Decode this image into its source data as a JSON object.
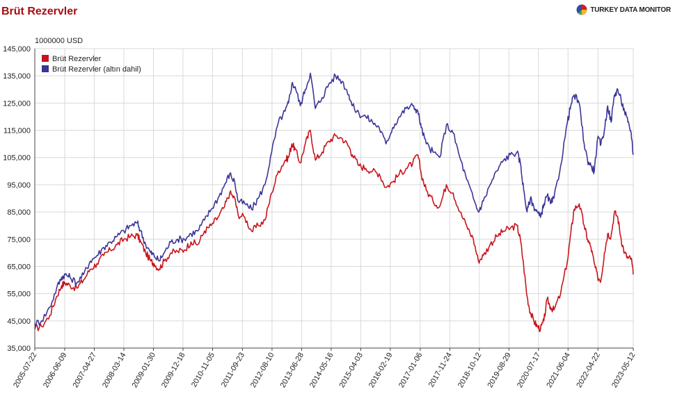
{
  "page": {
    "title": "Brüt Rezervler",
    "brand": "TURKEY DATA MONITOR"
  },
  "colors": {
    "title": "#a50d12",
    "series_red": "#c8141c",
    "series_blue": "#3a3596",
    "grid": "#d9d9d9"
  },
  "chart_data": {
    "type": "line",
    "title": "Brüt Rezervler",
    "unit_label": "1000000 USD",
    "xlabel": "",
    "ylabel": "1000000 USD",
    "ylim": [
      35000,
      145000
    ],
    "yticks": [
      35000,
      45000,
      55000,
      65000,
      75000,
      85000,
      95000,
      105000,
      115000,
      125000,
      135000,
      145000
    ],
    "ytick_labels": [
      "35,000",
      "45,000",
      "55,000",
      "65,000",
      "75,000",
      "85,000",
      "95,000",
      "105,000",
      "115,000",
      "125,000",
      "135,000",
      "145,000"
    ],
    "xlim": [
      2005.55,
      2023.36
    ],
    "xticks": [
      2005.55,
      2006.44,
      2007.32,
      2008.2,
      2009.08,
      2009.96,
      2010.84,
      2011.73,
      2012.61,
      2013.49,
      2014.37,
      2015.25,
      2016.13,
      2017.02,
      2017.9,
      2018.78,
      2019.66,
      2020.54,
      2021.42,
      2022.31,
      2023.36
    ],
    "xtick_labels": [
      "2005-07-22",
      "2006-06-09",
      "2007-04-27",
      "2008-03-14",
      "2009-01-30",
      "2009-12-18",
      "2010-11-05",
      "2011-09-23",
      "2012-08-10",
      "2013-06-28",
      "2014-05-16",
      "2015-04-03",
      "2016-02-19",
      "2017-01-06",
      "2017-11-24",
      "2018-10-12",
      "2019-08-29",
      "2020-07-17",
      "2021-06-04",
      "2022-04-22",
      "2023-05-12"
    ],
    "grid": true,
    "legend_position": "top-left",
    "series": [
      {
        "name": "Brüt Rezervler",
        "color": "#c8141c",
        "x": [
          2005.55,
          2005.75,
          2006.0,
          2006.2,
          2006.35,
          2006.45,
          2006.6,
          2006.8,
          2007.0,
          2007.2,
          2007.4,
          2007.6,
          2007.8,
          2008.0,
          2008.2,
          2008.4,
          2008.6,
          2008.7,
          2008.85,
          2009.0,
          2009.1,
          2009.25,
          2009.4,
          2009.6,
          2009.8,
          2010.0,
          2010.2,
          2010.4,
          2010.6,
          2010.8,
          2011.0,
          2011.2,
          2011.35,
          2011.5,
          2011.6,
          2011.8,
          2012.0,
          2012.2,
          2012.4,
          2012.6,
          2012.8,
          2013.0,
          2013.1,
          2013.2,
          2013.3,
          2013.45,
          2013.6,
          2013.75,
          2013.9,
          2014.1,
          2014.3,
          2014.5,
          2014.7,
          2014.9,
          2015.0,
          2015.2,
          2015.4,
          2015.6,
          2015.8,
          2016.0,
          2016.2,
          2016.4,
          2016.6,
          2016.8,
          2016.95,
          2017.05,
          2017.2,
          2017.4,
          2017.6,
          2017.8,
          2018.0,
          2018.2,
          2018.4,
          2018.6,
          2018.75,
          2018.9,
          2019.1,
          2019.3,
          2019.5,
          2019.7,
          2019.9,
          2020.0,
          2020.1,
          2020.2,
          2020.3,
          2020.4,
          2020.5,
          2020.6,
          2020.7,
          2020.8,
          2020.9,
          2021.0,
          2021.2,
          2021.4,
          2021.5,
          2021.6,
          2021.75,
          2021.9,
          2022.0,
          2022.1,
          2022.2,
          2022.3,
          2022.4,
          2022.5,
          2022.6,
          2022.7,
          2022.8,
          2022.9,
          2023.0,
          2023.1,
          2023.2,
          2023.3,
          2023.36
        ],
        "values": [
          42000,
          43000,
          47000,
          54000,
          58000,
          59000,
          58000,
          57000,
          60000,
          64000,
          66000,
          69000,
          71000,
          73000,
          75000,
          76000,
          76500,
          74000,
          70000,
          67000,
          66000,
          64000,
          67000,
          70000,
          70500,
          71000,
          74000,
          73000,
          78000,
          80000,
          83000,
          87000,
          92000,
          90000,
          84000,
          83000,
          78000,
          80000,
          82000,
          92000,
          100000,
          104000,
          105000,
          110000,
          108000,
          103000,
          110000,
          115000,
          104000,
          107000,
          111000,
          113000,
          112000,
          109000,
          106000,
          102000,
          101000,
          100000,
          99000,
          94000,
          96000,
          99000,
          101000,
          103000,
          106000,
          99000,
          93000,
          89000,
          87000,
          95000,
          92000,
          85000,
          80000,
          75000,
          67000,
          69000,
          73000,
          76000,
          78000,
          79000,
          80000,
          75000,
          65000,
          54000,
          48000,
          45000,
          43000,
          42000,
          45000,
          53000,
          50000,
          49000,
          55000,
          67000,
          77000,
          86000,
          88000,
          80000,
          75000,
          72000,
          66000,
          61000,
          60000,
          70000,
          77000,
          76000,
          85000,
          83000,
          75000,
          70000,
          68000,
          68000,
          62000
        ]
      },
      {
        "name": "Brüt Rezervler (altın dahil)",
        "color": "#3a3596",
        "x": [
          2005.55,
          2005.75,
          2006.0,
          2006.2,
          2006.35,
          2006.45,
          2006.6,
          2006.8,
          2007.0,
          2007.2,
          2007.4,
          2007.6,
          2007.8,
          2008.0,
          2008.2,
          2008.4,
          2008.6,
          2008.7,
          2008.85,
          2009.0,
          2009.1,
          2009.25,
          2009.4,
          2009.6,
          2009.8,
          2010.0,
          2010.2,
          2010.4,
          2010.6,
          2010.8,
          2011.0,
          2011.2,
          2011.35,
          2011.5,
          2011.6,
          2011.8,
          2012.0,
          2012.2,
          2012.4,
          2012.6,
          2012.8,
          2013.0,
          2013.1,
          2013.2,
          2013.3,
          2013.45,
          2013.6,
          2013.75,
          2013.9,
          2014.1,
          2014.3,
          2014.5,
          2014.7,
          2014.9,
          2015.0,
          2015.2,
          2015.4,
          2015.6,
          2015.8,
          2016.0,
          2016.2,
          2016.4,
          2016.6,
          2016.8,
          2016.95,
          2017.05,
          2017.2,
          2017.4,
          2017.6,
          2017.8,
          2018.0,
          2018.2,
          2018.4,
          2018.6,
          2018.75,
          2018.9,
          2019.1,
          2019.3,
          2019.5,
          2019.7,
          2019.9,
          2020.0,
          2020.1,
          2020.2,
          2020.3,
          2020.4,
          2020.5,
          2020.6,
          2020.7,
          2020.8,
          2020.9,
          2021.0,
          2021.2,
          2021.4,
          2021.5,
          2021.6,
          2021.75,
          2021.9,
          2022.0,
          2022.1,
          2022.2,
          2022.3,
          2022.4,
          2022.5,
          2022.6,
          2022.7,
          2022.8,
          2022.9,
          2023.0,
          2023.1,
          2023.2,
          2023.3,
          2023.36
        ],
        "values": [
          44000,
          45000,
          50000,
          57000,
          61000,
          62000,
          61000,
          59000,
          62000,
          67000,
          69000,
          72000,
          74000,
          76000,
          78000,
          80000,
          81000,
          78000,
          73000,
          70000,
          69000,
          67000,
          70000,
          74000,
          75000,
          75000,
          77000,
          78000,
          82000,
          86000,
          90000,
          95000,
          99000,
          96000,
          89000,
          88000,
          86000,
          90000,
          95000,
          107000,
          118000,
          122000,
          125000,
          132000,
          131000,
          124000,
          130000,
          136000,
          123000,
          127000,
          132000,
          135000,
          133000,
          128000,
          124000,
          121000,
          120000,
          118000,
          116000,
          110000,
          116000,
          120000,
          123000,
          124000,
          122000,
          116000,
          110000,
          107000,
          105000,
          117000,
          114000,
          105000,
          97000,
          90000,
          85000,
          89000,
          95000,
          100000,
          104000,
          106000,
          107000,
          103000,
          93000,
          85000,
          90000,
          87000,
          85000,
          83000,
          88000,
          91000,
          88000,
          90000,
          102000,
          118000,
          124000,
          128000,
          125000,
          110000,
          104000,
          102000,
          100000,
          112000,
          110000,
          115000,
          124000,
          118000,
          128000,
          130000,
          126000,
          122000,
          118000,
          114000,
          106000
        ]
      }
    ]
  }
}
